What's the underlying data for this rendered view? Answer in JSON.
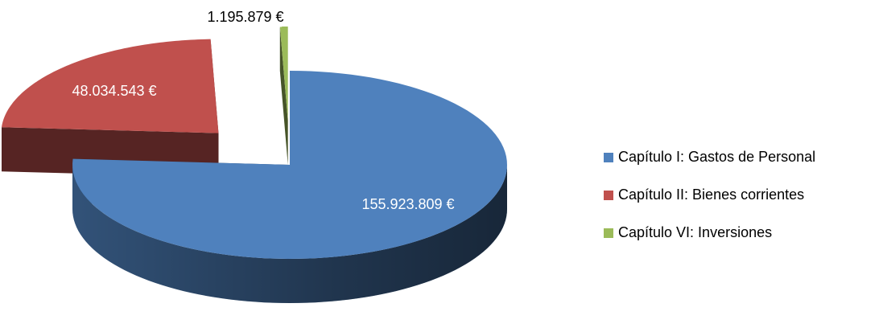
{
  "chart_data": {
    "type": "pie",
    "categories": [
      "Capítulo I: Gastos de Personal",
      "Capítulo II: Bienes corrientes",
      "Capítulo VI: Inversiones"
    ],
    "values": [
      155923809,
      48034543,
      1195879
    ],
    "value_labels": [
      "155.923.809 €",
      "48.034.543 €",
      "1.195.879 €"
    ],
    "colors": [
      "#4f81bd",
      "#c0504d",
      "#9bbb59"
    ],
    "legend": "right"
  }
}
